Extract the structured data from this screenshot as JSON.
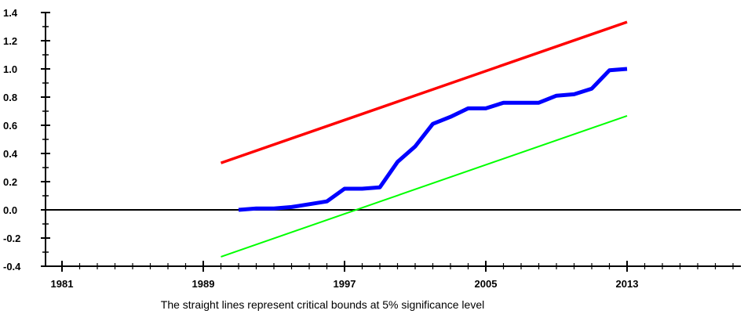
{
  "chart_data": {
    "type": "line",
    "caption": "The straight lines represent critical bounds at 5% significance level",
    "xlim": [
      1981,
      2021
    ],
    "ylim": [
      -0.4,
      1.4
    ],
    "x_ticks": [
      1981,
      1989,
      1997,
      2005,
      2013
    ],
    "y_ticks": [
      -0.4,
      -0.2,
      0.0,
      0.2,
      0.4,
      0.6,
      0.8,
      1.0,
      1.2,
      1.4
    ],
    "y_tick_labels": [
      "-0.4",
      "-0.2",
      "0.0",
      "0.2",
      "0.4",
      "0.6",
      "0.8",
      "1.0",
      "1.2",
      "1.4"
    ],
    "x_minor_step": 1,
    "y_minor_step": 0.1,
    "zero_line": true,
    "grid": false,
    "legend": "none",
    "series": [
      {
        "color": "#ff0000",
        "stroke": 3.5,
        "x": [
          1990,
          2013
        ],
        "y": [
          0.333,
          1.333
        ]
      },
      {
        "color": "#00ff00",
        "stroke": 2,
        "x": [
          1990,
          2013
        ],
        "y": [
          -0.333,
          0.667
        ]
      },
      {
        "color": "#0000ff",
        "stroke": 5,
        "x": [
          1991,
          1992,
          1993,
          1994,
          1995,
          1996,
          1997,
          1998,
          1999,
          2000,
          2001,
          2002,
          2003,
          2004,
          2005,
          2006,
          2007,
          2008,
          2009,
          2010,
          2011,
          2012,
          2013
        ],
        "y": [
          0.0,
          0.01,
          0.01,
          0.02,
          0.04,
          0.06,
          0.15,
          0.15,
          0.16,
          0.34,
          0.45,
          0.61,
          0.66,
          0.72,
          0.72,
          0.76,
          0.76,
          0.76,
          0.81,
          0.82,
          0.86,
          0.99,
          1.0
        ]
      }
    ]
  }
}
